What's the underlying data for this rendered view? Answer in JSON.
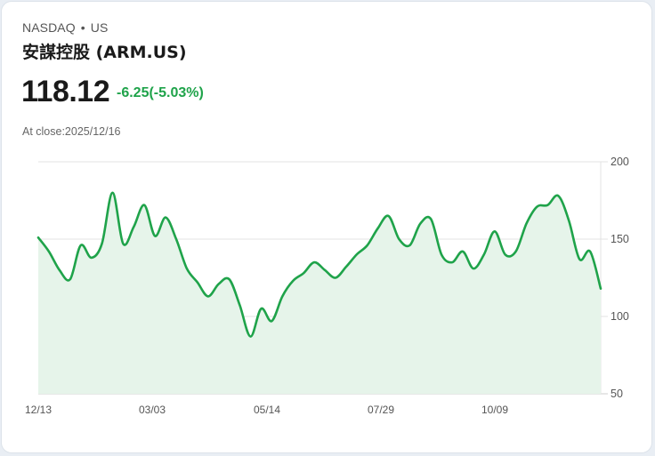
{
  "header": {
    "exchange": "NASDAQ",
    "separator": "•",
    "market": "US",
    "title": "安謀控股 (ARM.US)",
    "price": "118.12",
    "change": "-6.25(-5.03%)",
    "close_label": "At close:2025/12/16"
  },
  "colors": {
    "line": "#1fa34a",
    "fill": "#e6f4ea",
    "change": "#1fa34a",
    "grid": "#e0e0e0"
  },
  "chart_data": {
    "type": "area",
    "title": "安謀控股 (ARM.US)",
    "xlabel": "",
    "ylabel": "",
    "ylim": [
      50,
      200
    ],
    "yticks": [
      "200",
      "150",
      "100",
      "50"
    ],
    "xticks": [
      "12/13",
      "03/03",
      "05/14",
      "07/29",
      "10/09"
    ],
    "grid": true,
    "y_axis_position": "right",
    "series": [
      {
        "name": "ARM.US close",
        "x": [
          "12/13",
          "12/20",
          "12/27",
          "01/03",
          "01/10",
          "01/17",
          "01/24",
          "01/31",
          "02/07",
          "02/14",
          "02/21",
          "02/28",
          "03/07",
          "03/14",
          "03/21",
          "03/28",
          "04/04",
          "04/11",
          "04/18",
          "04/25",
          "05/02",
          "05/09",
          "05/16",
          "05/23",
          "05/30",
          "06/06",
          "06/13",
          "06/20",
          "06/27",
          "07/04",
          "07/11",
          "07/18",
          "07/25",
          "08/01",
          "08/08",
          "08/15",
          "08/22",
          "08/29",
          "09/05",
          "09/12",
          "09/19",
          "09/26",
          "10/03",
          "10/10",
          "10/17",
          "10/24",
          "10/31",
          "11/07",
          "11/14",
          "11/21",
          "11/28",
          "12/05",
          "12/12",
          "12/16"
        ],
        "values": [
          151,
          142,
          130,
          124,
          146,
          138,
          147,
          180,
          147,
          158,
          172,
          152,
          164,
          150,
          131,
          122,
          113,
          121,
          124,
          107,
          87,
          105,
          97,
          113,
          123,
          128,
          135,
          130,
          125,
          132,
          140,
          146,
          157,
          165,
          150,
          146,
          160,
          163,
          140,
          135,
          142,
          131,
          140,
          155,
          140,
          142,
          160,
          171,
          172,
          178,
          162,
          137,
          142,
          118
        ]
      }
    ]
  }
}
